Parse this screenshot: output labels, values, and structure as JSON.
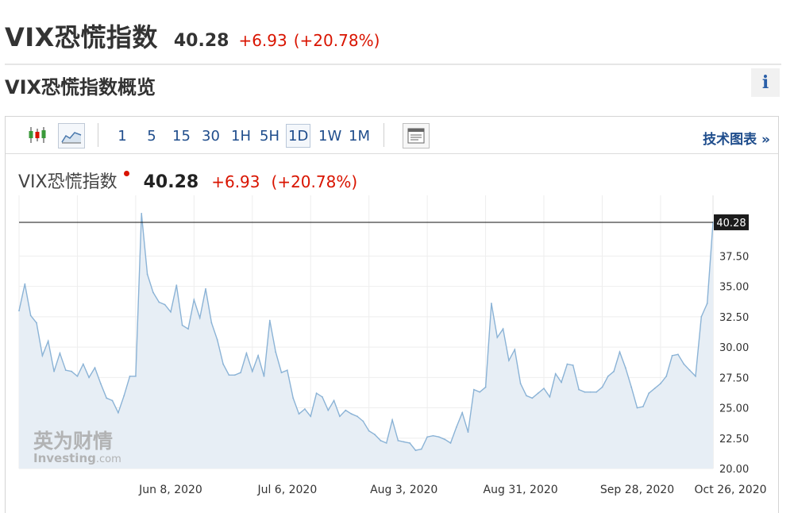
{
  "header": {
    "name": "VIX恐慌指数",
    "price": "40.28",
    "change": "+6.93",
    "change_pct": "(+20.78%)"
  },
  "section": {
    "title": "VIX恐慌指数概览",
    "info_label": "i"
  },
  "toolbar": {
    "intervals": [
      "1",
      "5",
      "15",
      "30",
      "1H",
      "5H",
      "1D",
      "1W",
      "1M"
    ],
    "active_interval": "1D",
    "tech_chart_label": "技术图表 »"
  },
  "chart_header": {
    "name": "VIX恐慌指数",
    "price": "40.28",
    "change": "+6.93",
    "change_pct": "(+20.78%)"
  },
  "watermark": {
    "cn": "英为财情",
    "en": "Investing",
    "suffix": ".com"
  },
  "colors": {
    "up": "#d91400",
    "line": "#8bb3d6",
    "fill": "#e7eef5",
    "link": "#1f4d8c"
  },
  "chart_data": {
    "type": "area",
    "ylim": [
      20.0,
      42.5
    ],
    "yticks": [
      "20.00",
      "22.50",
      "25.00",
      "27.50",
      "30.00",
      "32.50",
      "35.00",
      "37.50"
    ],
    "last_value": 40.28,
    "last_label": "40.28",
    "xticks": [
      {
        "label": "Jun 8, 2020",
        "index": 26
      },
      {
        "label": "Jul 6, 2020",
        "index": 46
      },
      {
        "label": "Aug 3, 2020",
        "index": 66
      },
      {
        "label": "Aug 31, 2020",
        "index": 86
      },
      {
        "label": "Sep 28, 2020",
        "index": 106
      },
      {
        "label": "Oct 26, 2020",
        "index": 122
      }
    ],
    "values": [
      33.0,
      35.2,
      32.6,
      32.0,
      29.3,
      30.5,
      28.0,
      29.5,
      28.1,
      28.0,
      27.6,
      28.6,
      27.5,
      28.3,
      27.0,
      25.8,
      25.6,
      24.6,
      26.0,
      27.6,
      27.6,
      41.0,
      36.0,
      34.5,
      33.7,
      33.5,
      32.9,
      35.1,
      31.8,
      31.5,
      33.9,
      32.4,
      34.8,
      32.0,
      30.6,
      28.6,
      27.7,
      27.7,
      27.9,
      29.5,
      28.0,
      29.3,
      27.6,
      32.2,
      29.6,
      27.9,
      28.1,
      25.8,
      24.5,
      24.9,
      24.3,
      26.2,
      25.9,
      24.8,
      25.6,
      24.3,
      24.8,
      24.5,
      24.3,
      23.9,
      23.1,
      22.8,
      22.3,
      22.1,
      24.0,
      22.3,
      22.2,
      22.1,
      21.5,
      21.6,
      22.6,
      22.7,
      22.6,
      22.4,
      22.1,
      23.4,
      24.6,
      23.0,
      26.5,
      26.3,
      26.7,
      33.6,
      30.8,
      31.5,
      28.9,
      29.8,
      27.0,
      26.0,
      25.8,
      26.2,
      26.6,
      25.9,
      27.8,
      27.1,
      28.6,
      28.5,
      26.5,
      26.3,
      26.3,
      26.3,
      26.7,
      27.6,
      28.0,
      29.6,
      28.3,
      26.7,
      25.0,
      25.1,
      26.2,
      26.6,
      27.0,
      27.6,
      29.3,
      29.4,
      28.6,
      28.1,
      27.6,
      32.5,
      33.6,
      40.28
    ]
  }
}
